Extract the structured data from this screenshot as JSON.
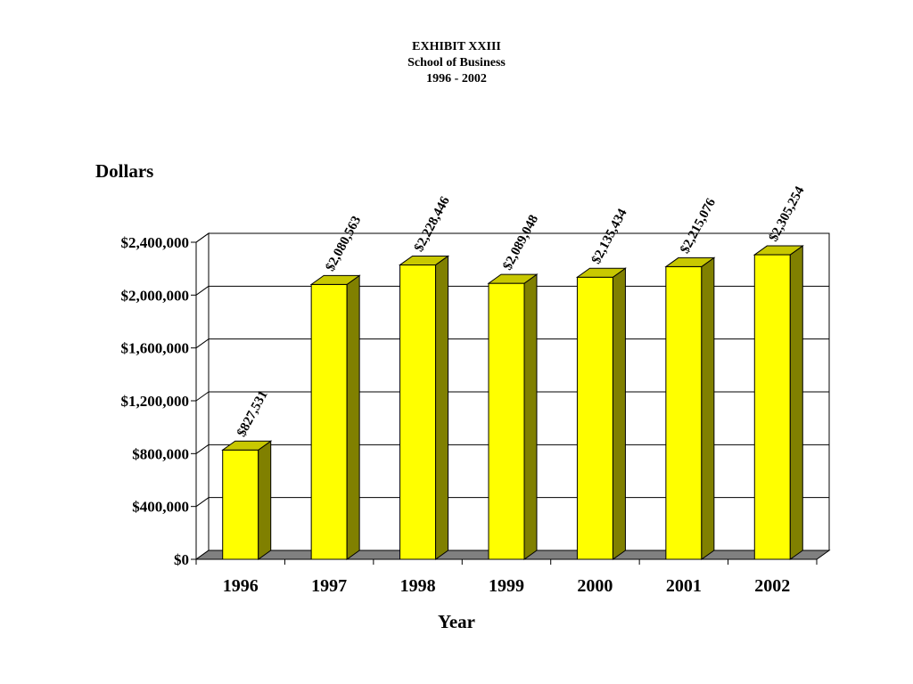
{
  "page": {
    "title_lines": [
      "EXHIBIT XXIII",
      "School of Business",
      "1996 - 2002"
    ]
  },
  "chart_data": {
    "type": "bar",
    "title": "EXHIBIT XXIII School of Business 1996 - 2002",
    "xlabel": "Year",
    "ylabel": "Dollars",
    "categories": [
      "1996",
      "1997",
      "1998",
      "1999",
      "2000",
      "2001",
      "2002"
    ],
    "values": [
      827531,
      2080563,
      2228446,
      2089048,
      2135434,
      2215076,
      2305254
    ],
    "data_labels": [
      "$827,531",
      "$2,080,563",
      "$2,228,446",
      "$2,089,048",
      "$2,135,434",
      "$2,215,076",
      "$2,305,254"
    ],
    "ylim": [
      0,
      2400000
    ],
    "yticks": [
      0,
      400000,
      800000,
      1200000,
      1600000,
      2000000,
      2400000
    ],
    "ytick_labels": [
      "$0",
      "$400,000",
      "$800,000",
      "$1,200,000",
      "$1,600,000",
      "$2,000,000",
      "$2,400,000"
    ],
    "grid": true,
    "bar_color": "#ffff00",
    "bar_side_color": "#808000",
    "bar_top_color": "#c8c800",
    "floor_color": "#808080"
  }
}
